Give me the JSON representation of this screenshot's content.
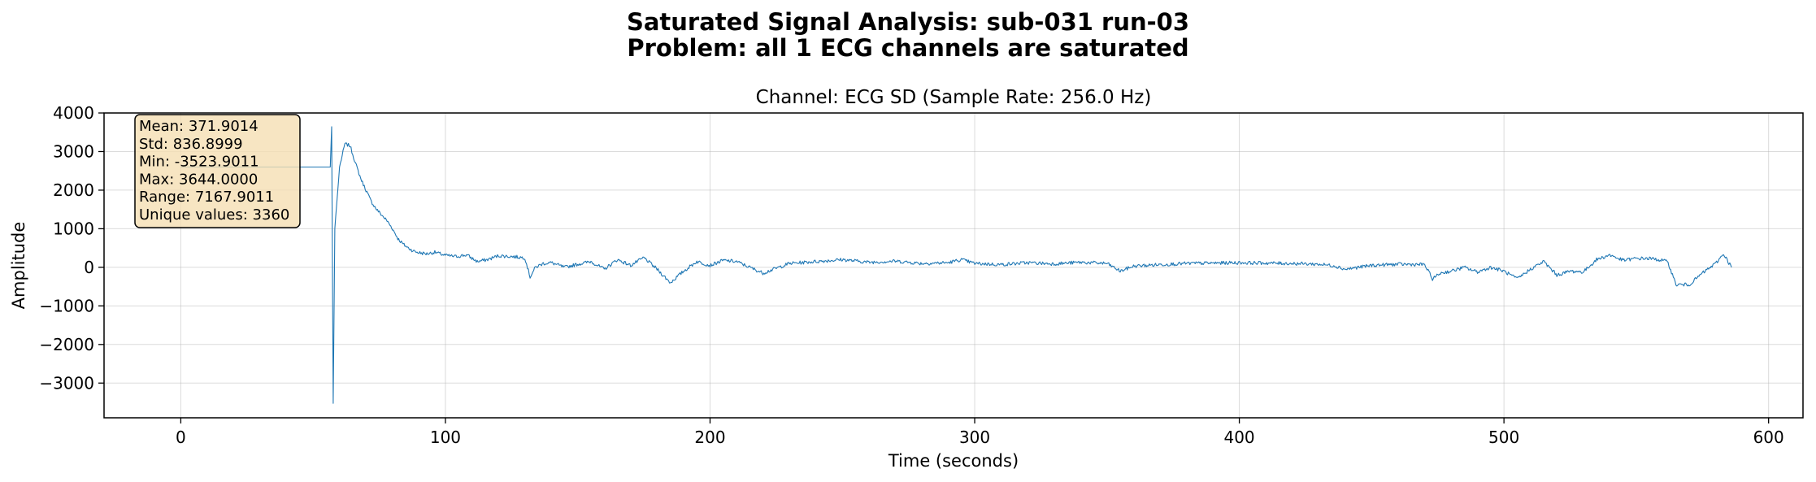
{
  "figure": {
    "title_line1": "Saturated Signal Analysis: sub-031 run-03",
    "title_line2": "Problem: all 1 ECG channels are saturated"
  },
  "chart_data": {
    "type": "line",
    "title": "Channel: ECG SD (Sample Rate: 256.0 Hz)",
    "xlabel": "Time (seconds)",
    "ylabel": "Amplitude",
    "xlim": [
      -29,
      613
    ],
    "ylim": [
      -3900,
      4000
    ],
    "xticks": [
      0,
      100,
      200,
      300,
      400,
      500,
      600
    ],
    "yticks": [
      -3000,
      -2000,
      -1000,
      0,
      1000,
      2000,
      3000,
      4000
    ],
    "grid": true,
    "line_color": "#1f77b4",
    "series": [
      {
        "x": [
          0,
          48,
          56.5,
          57,
          57.6,
          58.2,
          60,
          62,
          64,
          66,
          68,
          70,
          72,
          74,
          76,
          78,
          80,
          82,
          84,
          86,
          88,
          90,
          93,
          96,
          100,
          104,
          108,
          112,
          116,
          120,
          125,
          130,
          132,
          134,
          137,
          140,
          145,
          150,
          155,
          160,
          165,
          170,
          175,
          180,
          185,
          190,
          195,
          200,
          205,
          210,
          215,
          220,
          230,
          240,
          250,
          260,
          270,
          280,
          290,
          295,
          300,
          310,
          320,
          330,
          340,
          350,
          355,
          360,
          370,
          380,
          390,
          400,
          410,
          420,
          430,
          436,
          440,
          450,
          460,
          470,
          473,
          476,
          480,
          485,
          490,
          495,
          500,
          505,
          510,
          515,
          520,
          525,
          530,
          535,
          540,
          545,
          550,
          555,
          560,
          562,
          565,
          570,
          575,
          580,
          583,
          586
        ],
        "y": [
          2600,
          2600,
          2600,
          3644,
          -3524,
          1000,
          2600,
          3200,
          3150,
          2700,
          2300,
          2000,
          1700,
          1500,
          1350,
          1200,
          1000,
          750,
          600,
          500,
          420,
          380,
          350,
          390,
          310,
          280,
          320,
          150,
          200,
          300,
          280,
          250,
          -250,
          0,
          100,
          120,
          0,
          80,
          150,
          -50,
          200,
          50,
          250,
          -50,
          -400,
          -100,
          150,
          50,
          180,
          150,
          0,
          -150,
          100,
          150,
          200,
          130,
          160,
          100,
          120,
          200,
          100,
          70,
          120,
          90,
          130,
          100,
          -100,
          30,
          70,
          100,
          110,
          120,
          110,
          100,
          80,
          40,
          -50,
          50,
          80,
          70,
          -300,
          -150,
          -100,
          0,
          -120,
          0,
          -100,
          -300,
          -50,
          150,
          -200,
          -100,
          -120,
          200,
          320,
          180,
          230,
          230,
          180,
          130,
          -450,
          -450,
          -150,
          100,
          350,
          0
        ]
      }
    ],
    "stats_box": [
      "Mean: 371.9014",
      "Std: 836.8999",
      "Min: -3523.9011",
      "Max: 3644.0000",
      "Range: 7167.9011",
      "Unique values: 3360"
    ]
  }
}
